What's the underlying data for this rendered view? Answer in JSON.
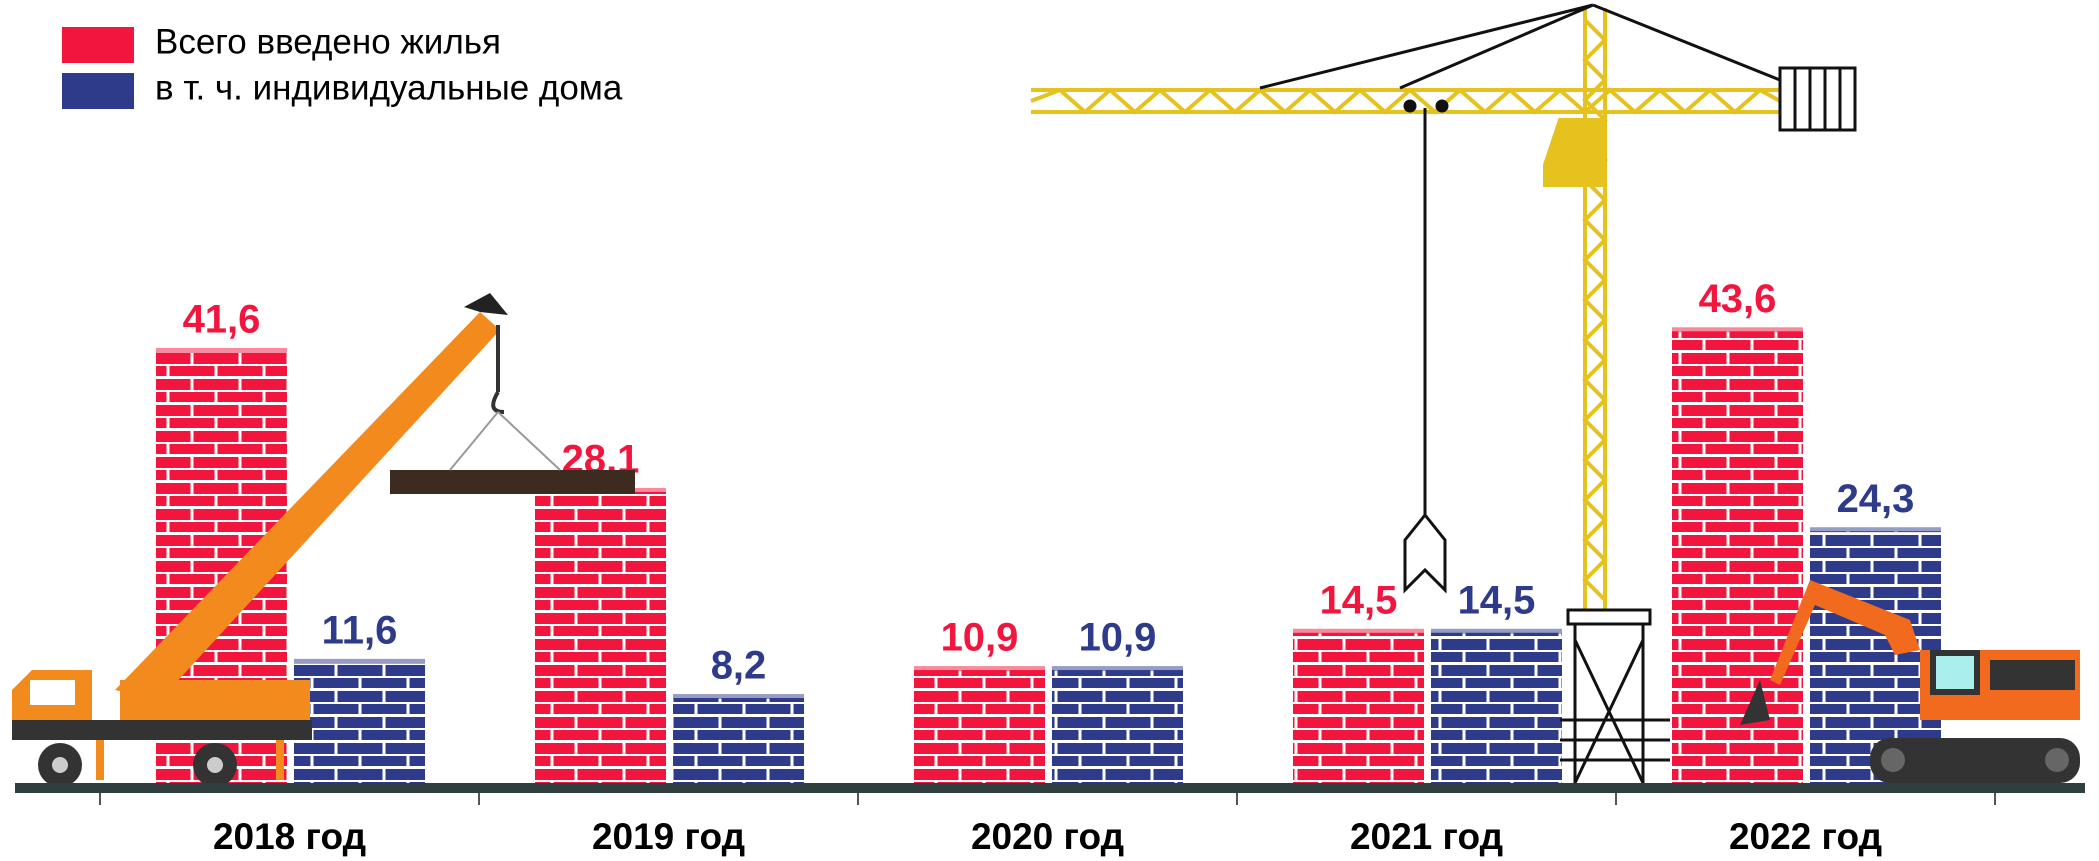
{
  "chart_data": {
    "type": "bar",
    "categories": [
      "2018 год",
      "2019 год",
      "2020 год",
      "2021 год",
      "2022 год"
    ],
    "series": [
      {
        "name": "Всего введено жилья",
        "color": "#f2163e",
        "values": [
          41.6,
          28.1,
          10.9,
          14.5,
          43.6
        ],
        "value_labels": [
          "41,6",
          "28,1",
          "10,9",
          "14,5",
          "43,6"
        ]
      },
      {
        "name": "в т. ч. индивидуальные дома",
        "color": "#2e3a8a",
        "values": [
          11.6,
          8.2,
          10.9,
          14.5,
          24.3
        ],
        "value_labels": [
          "11,6",
          "8,2",
          "10,9",
          "14,5",
          "24,3"
        ]
      }
    ]
  }
}
